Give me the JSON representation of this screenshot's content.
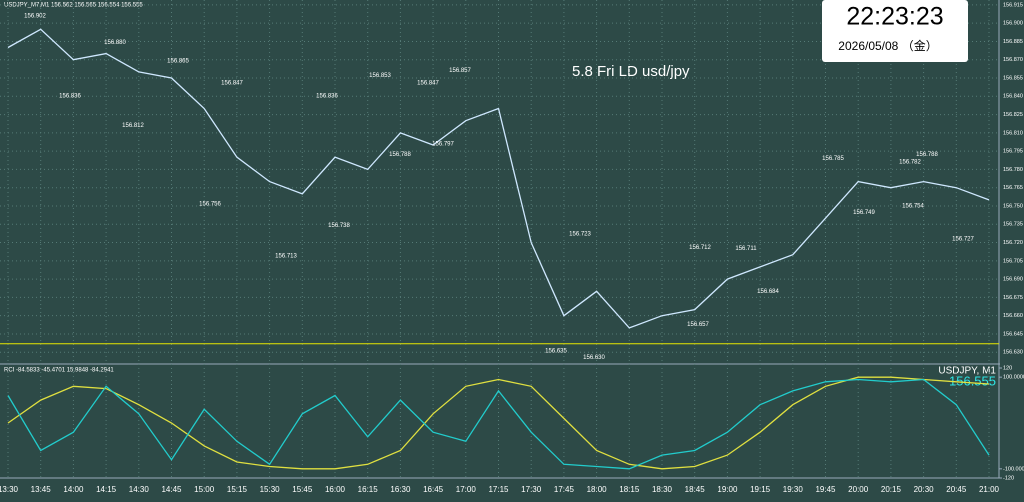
{
  "header": {
    "info": "USDJPY_M7,M1 156.562 156.565 156.554 156.555"
  },
  "clock": {
    "time": "22:23:23",
    "date": "2026/05/08 （金）"
  },
  "chart_data": [
    {
      "type": "line",
      "title": "5.8 Fri LD usd/jpy",
      "color": "#cfe8ff",
      "x": [
        "13:30",
        "13:45",
        "14:00",
        "14:15",
        "14:30",
        "14:45",
        "15:00",
        "15:15",
        "15:30",
        "15:45",
        "16:00",
        "16:15",
        "16:30",
        "16:45",
        "17:00",
        "17:15",
        "17:30",
        "17:45",
        "18:00",
        "18:15",
        "18:30",
        "18:45",
        "19:00",
        "19:15",
        "19:30",
        "19:45",
        "20:00",
        "20:15",
        "20:30",
        "20:45",
        "21:00"
      ],
      "values": [
        156.88,
        156.895,
        156.87,
        156.875,
        156.86,
        156.855,
        156.83,
        156.79,
        156.77,
        156.76,
        156.79,
        156.78,
        156.81,
        156.8,
        156.82,
        156.83,
        156.72,
        156.66,
        156.68,
        156.65,
        156.66,
        156.665,
        156.69,
        156.7,
        156.71,
        156.74,
        156.77,
        156.765,
        156.77,
        156.765,
        156.755
      ],
      "ylim": [
        156.622,
        156.919
      ],
      "yticks": [
        156.915,
        {
          "value": 156.9,
          "label": "156.900"
        },
        156.885,
        {
          "value": 156.87,
          "label": "156.870"
        },
        156.855,
        {
          "value": 156.84,
          "label": "156.840"
        },
        156.825,
        {
          "value": 156.81,
          "label": "156.810"
        },
        156.795,
        {
          "value": 156.78,
          "label": "156.780"
        },
        156.765,
        {
          "value": 156.75,
          "label": "156.750"
        },
        156.735,
        {
          "value": 156.72,
          "label": "156.720"
        },
        156.705,
        {
          "value": 156.69,
          "label": "156.690"
        },
        156.675,
        {
          "value": 156.66,
          "label": "156.660"
        },
        156.645,
        {
          "value": 156.63,
          "label": "156.630"
        }
      ],
      "grid": true,
      "hline": {
        "value": 156.637,
        "color": "#e8e800"
      },
      "annotations": [
        {
          "value": 156.902,
          "label": "156.902"
        },
        {
          "value": 156.88,
          "label": "156.880"
        },
        {
          "value": 156.865,
          "label": "156.865"
        },
        {
          "value": 156.847,
          "label": "156.847"
        },
        {
          "value": 156.836,
          "label": "156.836"
        },
        {
          "value": 156.853,
          "label": "156.853"
        },
        {
          "value": 156.847,
          "label": "156.847"
        },
        {
          "value": 156.857,
          "label": "156.857"
        },
        {
          "value": 156.836,
          "label": "156.836"
        },
        {
          "value": 156.812,
          "label": "156.812"
        },
        {
          "value": 156.756,
          "label": "156.756"
        },
        {
          "value": 156.713,
          "label": "156.713"
        },
        {
          "value": 156.738,
          "label": "156.738"
        },
        {
          "value": 156.788,
          "label": "156.788"
        },
        {
          "value": 156.797,
          "label": "156.797"
        },
        {
          "value": 156.723,
          "label": "156.723"
        },
        {
          "value": 156.635,
          "label": "156.635"
        },
        {
          "value": 156.63,
          "label": "156.630"
        },
        {
          "value": 156.712,
          "label": "156.712"
        },
        {
          "value": 156.711,
          "label": "156.711"
        },
        {
          "value": 156.657,
          "label": "156.657"
        },
        {
          "value": 156.684,
          "label": "156.684"
        },
        {
          "value": 156.785,
          "label": "156.785"
        },
        {
          "value": 156.782,
          "label": "156.782"
        },
        {
          "value": 156.788,
          "label": "156.788"
        },
        {
          "value": 156.749,
          "label": "156.749"
        },
        {
          "value": 156.754,
          "label": "156.754"
        },
        {
          "value": 156.727,
          "label": "156.727"
        }
      ]
    },
    {
      "type": "line",
      "title": "RCI -84.5833 -45.4701 15.9848 -84.2941",
      "subtitle": "USDJPY, M1",
      "last_price": 156.555,
      "series": [
        {
          "color": "#e0e040",
          "values": [
            0,
            50,
            80,
            75,
            40,
            0,
            -50,
            -85,
            -95,
            -100,
            -100,
            -90,
            -60,
            20,
            80,
            95,
            80,
            10,
            -60,
            -90,
            -100,
            -95,
            -70,
            -20,
            40,
            80,
            100,
            100,
            95,
            90,
            85
          ]
        },
        {
          "color": "#22cccc",
          "values": [
            60,
            -60,
            -20,
            80,
            20,
            -80,
            30,
            -40,
            -90,
            20,
            60,
            -30,
            50,
            -20,
            -40,
            70,
            -20,
            -90,
            -95,
            -100,
            -70,
            -60,
            -20,
            40,
            70,
            90,
            95,
            90,
            95,
            40,
            -70
          ]
        }
      ],
      "ylim": [
        -120,
        120
      ],
      "yticks": [
        120,
        {
          "value": 100,
          "label": "100.0000"
        },
        {
          "value": -100,
          "label": "-100.0000"
        },
        -120
      ]
    }
  ]
}
